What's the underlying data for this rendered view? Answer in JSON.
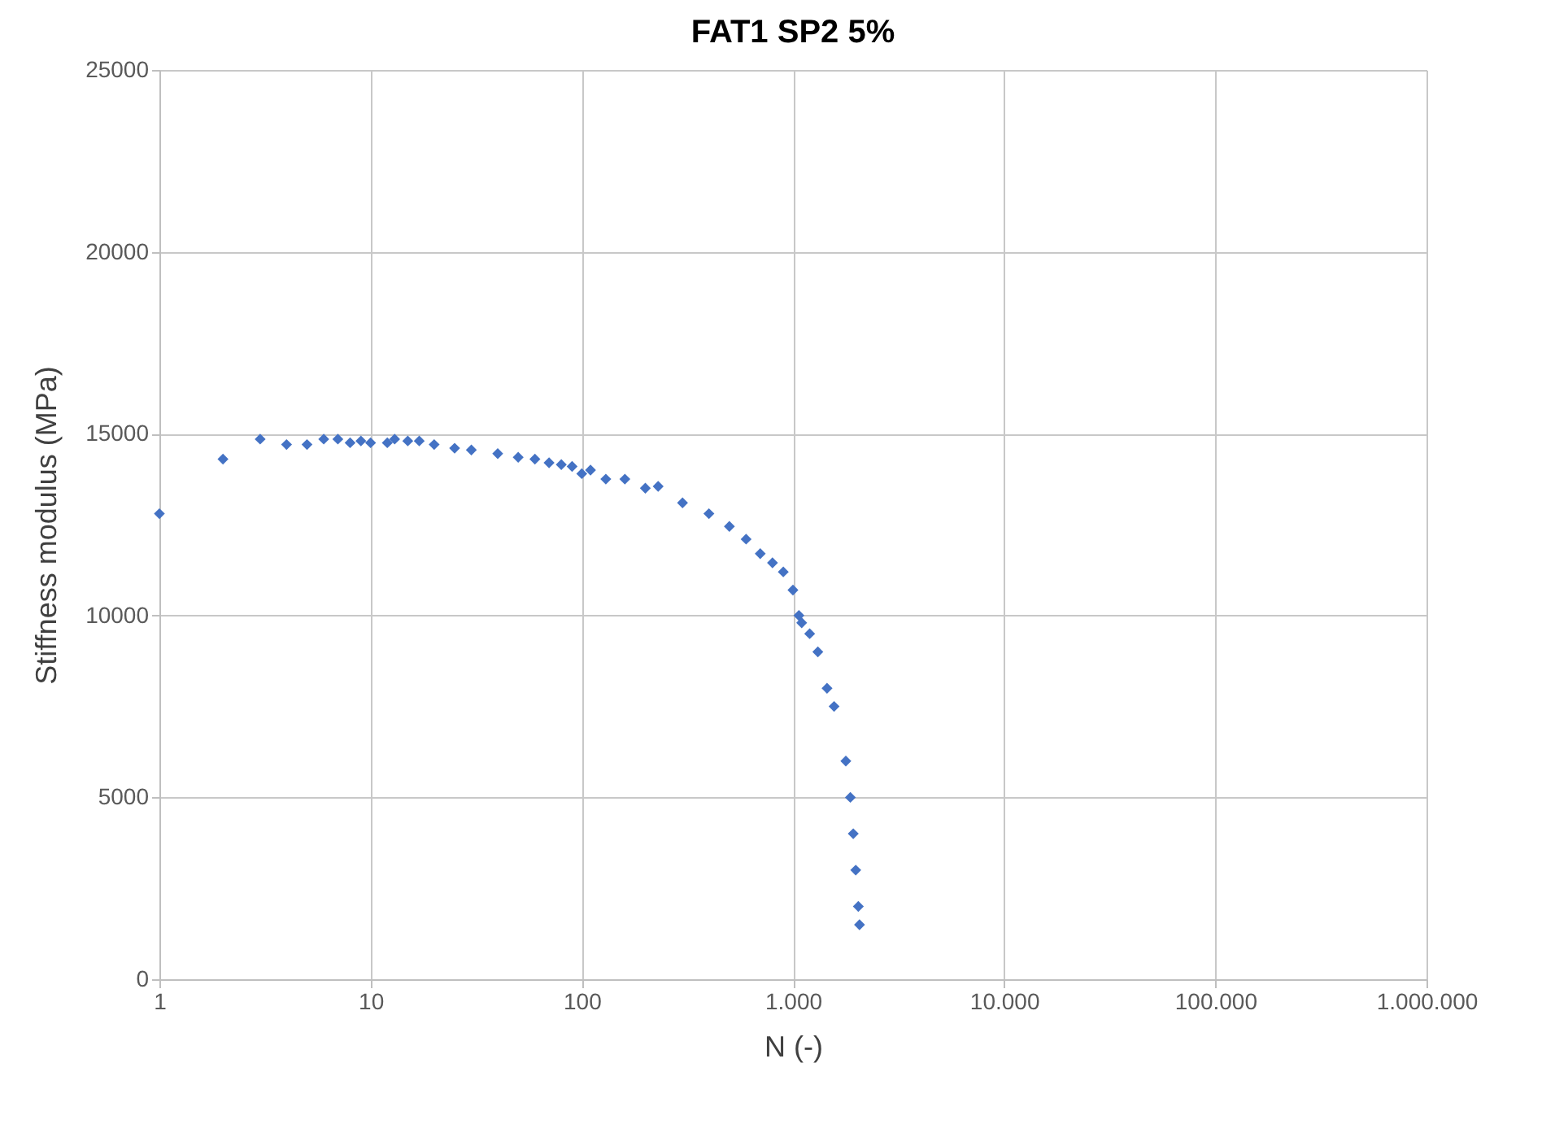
{
  "chart_data": {
    "type": "scatter",
    "title": "FAT1 SP2 5%",
    "xlabel": "N (-)",
    "ylabel": "Stiffness modulus (MPa)",
    "x": [
      1,
      2,
      3,
      4,
      5,
      6,
      7,
      8,
      9,
      10,
      12,
      13,
      15,
      17,
      20,
      25,
      30,
      40,
      50,
      60,
      70,
      80,
      90,
      100,
      110,
      130,
      160,
      200,
      230,
      300,
      400,
      500,
      600,
      700,
      800,
      900,
      1000,
      1067,
      1100,
      1200,
      1312,
      1450,
      1566,
      1780,
      1870,
      1930,
      1983,
      2040,
      2066
    ],
    "series": [
      {
        "color": "#4472c4",
        "values": [
          12800,
          14300,
          14850,
          14700,
          14700,
          14850,
          14850,
          14750,
          14800,
          14750,
          14750,
          14850,
          14800,
          14800,
          14700,
          14600,
          14550,
          14450,
          14350,
          14300,
          14200,
          14150,
          14100,
          13900,
          14000,
          13750,
          13750,
          13500,
          13550,
          13100,
          12800,
          12450,
          12100,
          11700,
          11450,
          11200,
          10700,
          10000,
          9800,
          9500,
          9000,
          8000,
          7500,
          6000,
          5000,
          4000,
          3000,
          2000,
          1500
        ]
      }
    ],
    "log": "x",
    "marker": "diamond",
    "grid": true,
    "xlim": [
      1,
      1000000
    ],
    "xticks": [
      1,
      10,
      100,
      {
        "value": 1000,
        "label": "1.000"
      },
      {
        "value": 10000,
        "label": "10.000"
      },
      {
        "value": 100000,
        "label": "100.000"
      },
      {
        "value": 1000000,
        "label": "1.000.000"
      }
    ],
    "ylim": [
      0,
      25000
    ],
    "yticks": [
      0,
      5000,
      10000,
      15000,
      20000,
      25000
    ]
  }
}
